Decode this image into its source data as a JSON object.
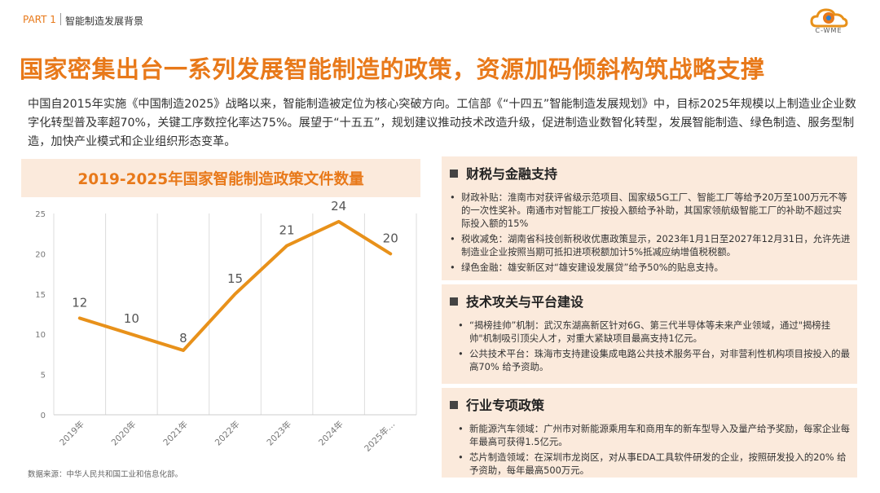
{
  "header": {
    "part": "PART 1",
    "section": "智能制造发展背景",
    "logo_text": "C-WME"
  },
  "title": "国家密集出台一系列发展智能制造的政策，资源加码倾斜构筑战略支撑",
  "intro": "中国自2015年实施《中国制造2025》战略以来，智能制造被定位为核心突破方向。工信部《“十四五”智能制造发展规划》中，目标2025年规模以上制造业企业数字化转型普及率超70%，关键工序数控化率达75%。展望于“十五五”，规划建议推动技术改造升级，促进制造业数智化转型，发展智能制造、绿色制造、服务型制造，加快产业模式和企业组织形态变革。",
  "chart_data": {
    "type": "line",
    "title": "2019-2025年国家智能制造政策文件数量",
    "categories": [
      "2019年",
      "2020年",
      "2021年",
      "2022年",
      "2023年",
      "2024年",
      "2025年…"
    ],
    "values": [
      12,
      10,
      8,
      15,
      21,
      24,
      20
    ],
    "ylim": [
      0,
      25
    ],
    "yticks": [
      0,
      5,
      10,
      15,
      20,
      25
    ],
    "grid": "vertical",
    "color": "#e8911a"
  },
  "source": "数据来源：中华人民共和国工业和信息化部。",
  "panels": [
    {
      "title": "财税与金融支持",
      "items": [
        "财政补贴：淮南市对获评省级示范项目、国家级5G工厂、智能工厂等给予20万至100万元不等的一次性奖补。南通市对智能工厂按投入额给予补助，其国家领航级智能工厂的补助不超过实际投入额的15%",
        "税收减免：湖南省科技创新税收优惠政策显示，2023年1月1日至2027年12月31日，允许先进制造业企业按照当期可抵扣进项税额加计5%抵减应纳增值税税额。",
        "绿色金融：雄安新区对“雄安建设发展贷”给予50%的贴息支持。"
      ]
    },
    {
      "title": "技术攻关与平台建设",
      "items": [
        "“揭榜挂帅”机制：武汉东湖高新区针对6G、第三代半导体等未来产业领域，通过\"揭榜挂帅\"机制吸引顶尖人才，对重大紧缺项目最高支持1亿元。",
        "公共技术平台：珠海市支持建设集成电路公共技术服务平台，对非营利性机构项目按投入的最高70% 给予资助。"
      ]
    },
    {
      "title": "行业专项政策",
      "items": [
        "新能源汽车领域：广州市对新能源乘用车和商用车的新车型导入及量产给予奖励，每家企业每年最高可获得1.5亿元。",
        "芯片制造领域：在深圳市龙岗区，对从事EDA工具软件研发的企业，按照研发投入的20% 给予资助，每年最高500万元。"
      ]
    }
  ]
}
